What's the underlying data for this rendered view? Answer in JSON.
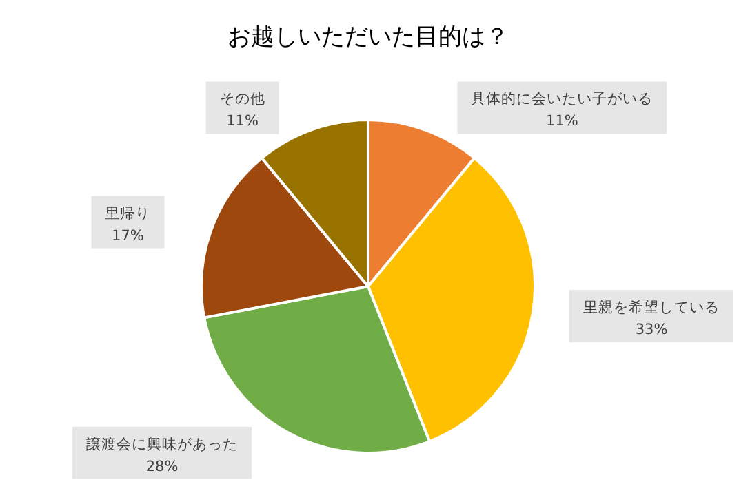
{
  "chart_data": {
    "type": "pie",
    "title": "お越しいただいた目的は？",
    "categories": [
      "具体的に会いたい子がいる",
      "里親を希望している",
      "譲渡会に興味があった",
      "里帰り",
      "その他"
    ],
    "values": [
      11,
      33,
      28,
      17,
      11
    ],
    "value_labels": [
      "11%",
      "33%",
      "28%",
      "17%",
      "11%"
    ],
    "colors": [
      "#ed7d31",
      "#ffc000",
      "#70ad47",
      "#9e480e",
      "#997300"
    ]
  }
}
